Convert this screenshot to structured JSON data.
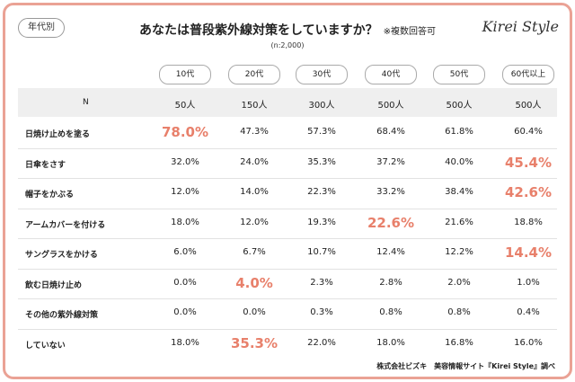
{
  "badge": "年代別",
  "title": "あなたは普段紫外線対策をしていますか？",
  "note": "※複数回答可",
  "sample": "(n:2,000)",
  "logo": "Kirei Style",
  "highlight_color": "#e8806b",
  "table": {
    "columns": [
      "10代",
      "20代",
      "30代",
      "40代",
      "50代",
      "60代以上"
    ],
    "n_row": {
      "label": "N",
      "cells": [
        "50人",
        "150人",
        "300人",
        "500人",
        "500人",
        "500人"
      ]
    },
    "rows": [
      {
        "label": "日焼け止めを塗る",
        "cells": [
          "78.0%",
          "47.3%",
          "57.3%",
          "68.4%",
          "61.8%",
          "60.4%"
        ]
      },
      {
        "label": "日傘をさす",
        "cells": [
          "32.0%",
          "24.0%",
          "35.3%",
          "37.2%",
          "40.0%",
          "45.4%"
        ]
      },
      {
        "label": "帽子をかぶる",
        "cells": [
          "12.0%",
          "14.0%",
          "22.3%",
          "33.2%",
          "38.4%",
          "42.6%"
        ]
      },
      {
        "label": "アームカバーを付ける",
        "cells": [
          "18.0%",
          "12.0%",
          "19.3%",
          "22.6%",
          "21.6%",
          "18.8%"
        ]
      },
      {
        "label": "サングラスをかける",
        "cells": [
          "6.0%",
          "6.7%",
          "10.7%",
          "12.4%",
          "12.2%",
          "14.4%"
        ]
      },
      {
        "label": "飲む日焼け止め",
        "cells": [
          "0.0%",
          "4.0%",
          "2.3%",
          "2.8%",
          "2.0%",
          "1.0%"
        ]
      },
      {
        "label": "その他の紫外線対策",
        "cells": [
          "0.0%",
          "0.0%",
          "0.3%",
          "0.8%",
          "0.8%",
          "0.4%"
        ]
      },
      {
        "label": "していない",
        "cells": [
          "18.0%",
          "35.3%",
          "22.0%",
          "18.0%",
          "16.8%",
          "16.0%"
        ]
      }
    ]
  },
  "footer": "株式会社ビズキ　美容情報サイト『Kirei Style』調べ"
}
